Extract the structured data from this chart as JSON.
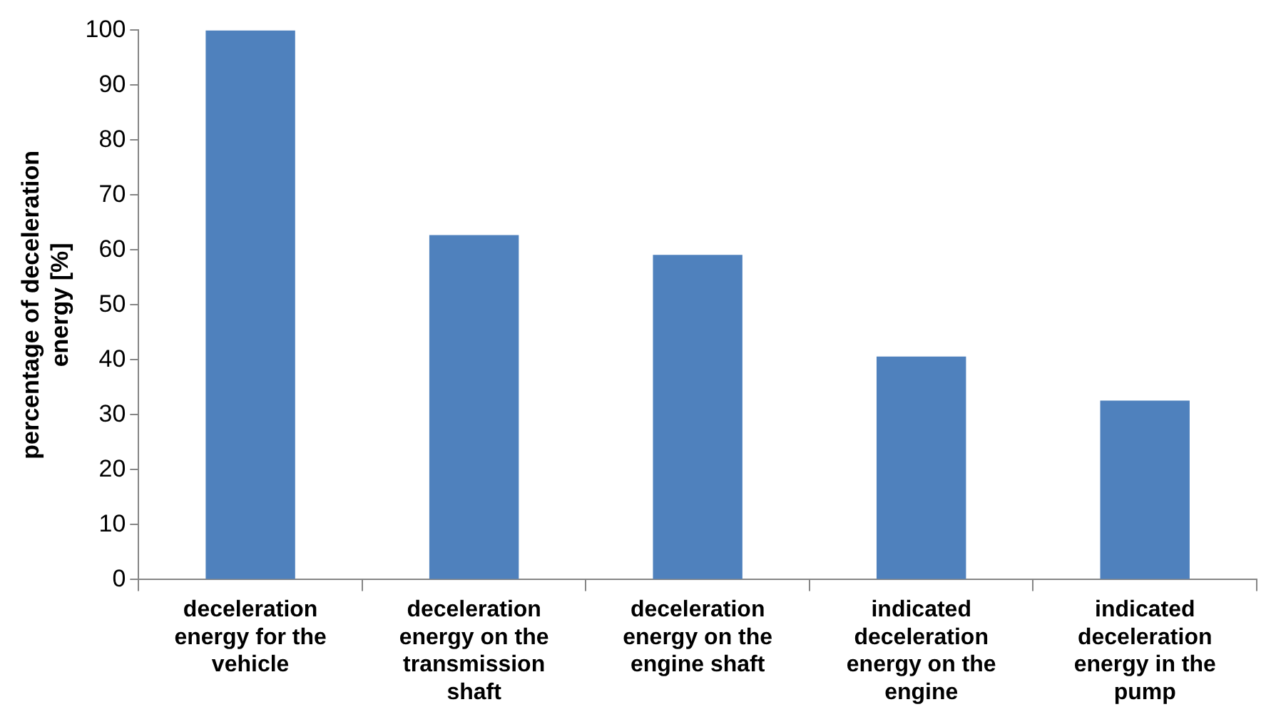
{
  "chart_data": {
    "type": "bar",
    "ylabel": "percentage  of deceleration energy  [%]",
    "categories": [
      "deceleration energy for the vehicle",
      "deceleration energy on the transmission shaft",
      "deceleration energy on the engine shaft",
      "indicated deceleration energy on the engine",
      "indicated deceleration energy in the pump"
    ],
    "values": [
      100,
      62.7,
      59.1,
      40.6,
      32.6
    ],
    "color": "#4f81bd",
    "ylim": [
      0,
      100
    ],
    "yticks": [
      0,
      10,
      20,
      30,
      40,
      50,
      60,
      70,
      80,
      90,
      100
    ]
  }
}
